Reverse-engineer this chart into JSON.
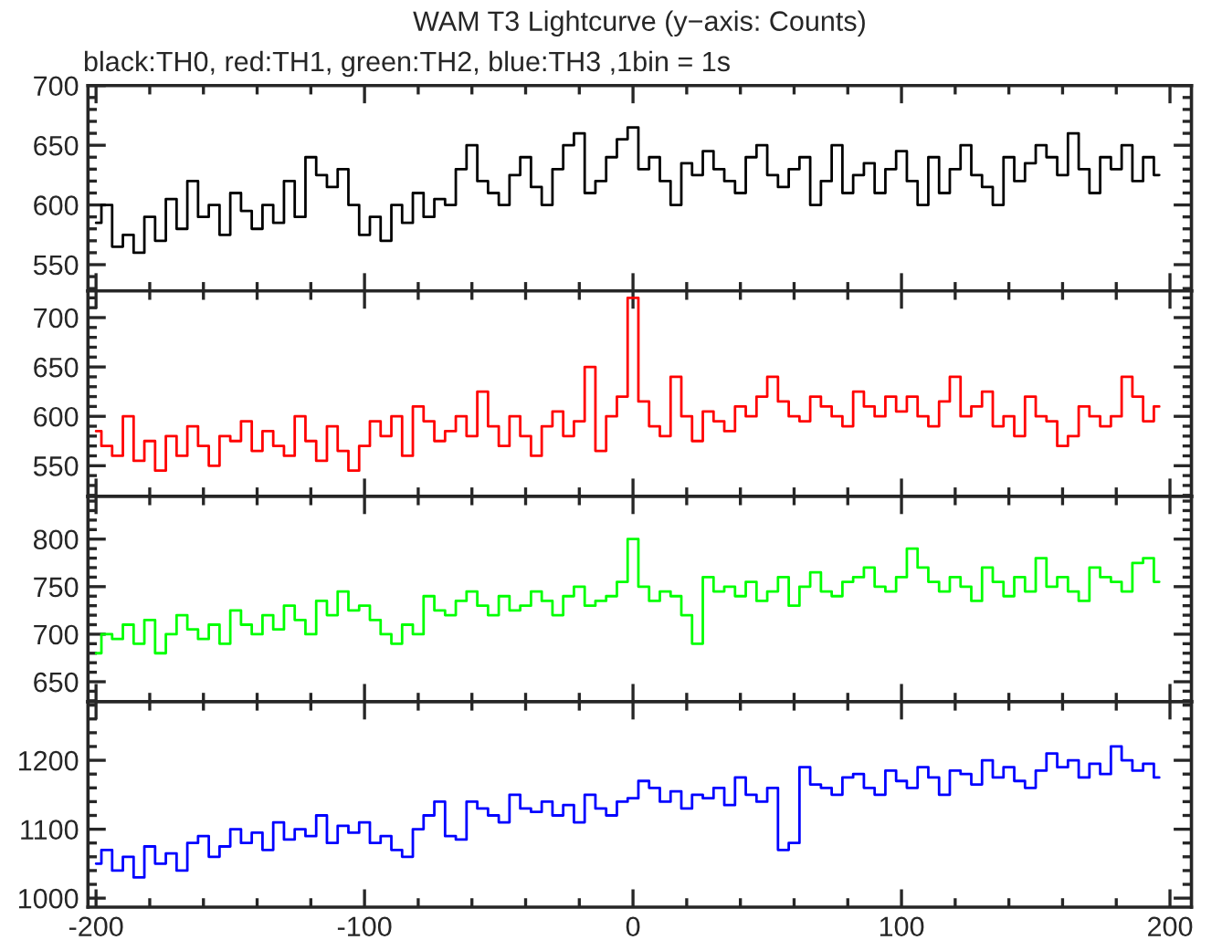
{
  "chart_data": [
    {
      "type": "step",
      "title": "WAM T3 Lightcurve (y−axis: Counts)",
      "subtitle": "black:TH0, red:TH1, green:TH2, blue:TH3 ,1bin = 1s",
      "xlim": [
        -203,
        208
      ],
      "ylim": [
        528,
        700
      ],
      "yticks": [
        550,
        600,
        650,
        700
      ],
      "tick_labels": "y",
      "x": [
        -200,
        -196,
        -192,
        -188,
        -184,
        -180,
        -176,
        -172,
        -168,
        -164,
        -160,
        -156,
        -152,
        -148,
        -144,
        -140,
        -136,
        -132,
        -128,
        -124,
        -120,
        -116,
        -112,
        -108,
        -104,
        -100,
        -96,
        -92,
        -88,
        -84,
        -80,
        -76,
        -72,
        -68,
        -64,
        -60,
        -56,
        -52,
        -48,
        -44,
        -40,
        -36,
        -32,
        -28,
        -24,
        -20,
        -16,
        -12,
        -8,
        -4,
        0,
        4,
        8,
        12,
        16,
        20,
        24,
        28,
        32,
        36,
        40,
        44,
        48,
        52,
        56,
        60,
        64,
        68,
        72,
        76,
        80,
        84,
        88,
        92,
        96,
        100,
        104,
        108,
        112,
        116,
        120,
        124,
        128,
        132,
        136,
        140,
        144,
        148,
        152,
        156,
        160,
        164,
        168,
        172,
        176,
        180,
        184,
        188,
        192,
        196
      ],
      "series": [
        {
          "color": "#000000",
          "values": [
            585,
            600,
            565,
            575,
            560,
            590,
            570,
            605,
            580,
            620,
            590,
            600,
            575,
            610,
            595,
            580,
            600,
            585,
            620,
            590,
            640,
            625,
            615,
            630,
            600,
            575,
            590,
            570,
            600,
            585,
            610,
            590,
            605,
            600,
            630,
            650,
            620,
            610,
            600,
            625,
            640,
            615,
            600,
            630,
            650,
            660,
            610,
            620,
            640,
            655,
            665,
            630,
            640,
            620,
            600,
            635,
            625,
            645,
            630,
            620,
            610,
            640,
            650,
            625,
            615,
            630,
            640,
            600,
            620,
            650,
            610,
            625,
            635,
            610,
            630,
            645,
            620,
            600,
            640,
            610,
            630,
            650,
            625,
            615,
            600,
            640,
            620,
            635,
            650,
            640,
            625,
            660,
            630,
            610,
            640,
            630,
            650,
            620,
            640,
            625
          ]
        }
      ]
    },
    {
      "type": "step",
      "xlim": [
        -203,
        208
      ],
      "ylim": [
        519,
        727
      ],
      "yticks": [
        550,
        600,
        650,
        700
      ],
      "tick_labels": "y",
      "x": [
        -200,
        -196,
        -192,
        -188,
        -184,
        -180,
        -176,
        -172,
        -168,
        -164,
        -160,
        -156,
        -152,
        -148,
        -144,
        -140,
        -136,
        -132,
        -128,
        -124,
        -120,
        -116,
        -112,
        -108,
        -104,
        -100,
        -96,
        -92,
        -88,
        -84,
        -80,
        -76,
        -72,
        -68,
        -64,
        -60,
        -56,
        -52,
        -48,
        -44,
        -40,
        -36,
        -32,
        -28,
        -24,
        -20,
        -16,
        -12,
        -8,
        -4,
        0,
        4,
        8,
        12,
        16,
        20,
        24,
        28,
        32,
        36,
        40,
        44,
        48,
        52,
        56,
        60,
        64,
        68,
        72,
        76,
        80,
        84,
        88,
        92,
        96,
        100,
        104,
        108,
        112,
        116,
        120,
        124,
        128,
        132,
        136,
        140,
        144,
        148,
        152,
        156,
        160,
        164,
        168,
        172,
        176,
        180,
        184,
        188,
        192,
        196
      ],
      "series": [
        {
          "color": "#ff0000",
          "values": [
            585,
            570,
            560,
            600,
            555,
            575,
            545,
            580,
            560,
            590,
            570,
            550,
            580,
            575,
            595,
            565,
            585,
            570,
            560,
            600,
            575,
            555,
            590,
            565,
            545,
            570,
            595,
            580,
            600,
            560,
            610,
            595,
            575,
            585,
            600,
            580,
            625,
            590,
            570,
            600,
            580,
            560,
            590,
            605,
            580,
            595,
            650,
            565,
            600,
            620,
            720,
            615,
            590,
            580,
            640,
            600,
            575,
            605,
            595,
            585,
            610,
            600,
            620,
            640,
            615,
            600,
            595,
            620,
            610,
            600,
            590,
            625,
            610,
            600,
            620,
            605,
            620,
            600,
            590,
            615,
            640,
            600,
            610,
            625,
            590,
            600,
            580,
            620,
            600,
            595,
            570,
            580,
            610,
            600,
            590,
            600,
            640,
            620,
            595,
            610
          ]
        }
      ]
    },
    {
      "type": "step",
      "xlim": [
        -203,
        208
      ],
      "ylim": [
        629,
        845
      ],
      "yticks": [
        650,
        700,
        750,
        800
      ],
      "tick_labels": "y",
      "x": [
        -200,
        -196,
        -192,
        -188,
        -184,
        -180,
        -176,
        -172,
        -168,
        -164,
        -160,
        -156,
        -152,
        -148,
        -144,
        -140,
        -136,
        -132,
        -128,
        -124,
        -120,
        -116,
        -112,
        -108,
        -104,
        -100,
        -96,
        -92,
        -88,
        -84,
        -80,
        -76,
        -72,
        -68,
        -64,
        -60,
        -56,
        -52,
        -48,
        -44,
        -40,
        -36,
        -32,
        -28,
        -24,
        -20,
        -16,
        -12,
        -8,
        -4,
        0,
        4,
        8,
        12,
        16,
        20,
        24,
        28,
        32,
        36,
        40,
        44,
        48,
        52,
        56,
        60,
        64,
        68,
        72,
        76,
        80,
        84,
        88,
        92,
        96,
        100,
        104,
        108,
        112,
        116,
        120,
        124,
        128,
        132,
        136,
        140,
        144,
        148,
        152,
        156,
        160,
        164,
        168,
        172,
        176,
        180,
        184,
        188,
        192,
        196
      ],
      "series": [
        {
          "color": "#00ff00",
          "values": [
            680,
            700,
            695,
            710,
            690,
            715,
            680,
            700,
            720,
            705,
            695,
            710,
            690,
            725,
            710,
            700,
            720,
            705,
            730,
            715,
            700,
            735,
            720,
            745,
            725,
            730,
            715,
            700,
            690,
            710,
            700,
            740,
            725,
            720,
            735,
            745,
            730,
            720,
            740,
            725,
            730,
            745,
            735,
            720,
            740,
            750,
            730,
            735,
            740,
            755,
            800,
            750,
            735,
            745,
            740,
            720,
            690,
            760,
            745,
            750,
            740,
            755,
            735,
            745,
            760,
            730,
            750,
            765,
            745,
            740,
            755,
            760,
            770,
            750,
            745,
            760,
            790,
            770,
            755,
            745,
            760,
            750,
            735,
            770,
            755,
            740,
            760,
            745,
            780,
            750,
            760,
            745,
            735,
            770,
            760,
            755,
            745,
            775,
            780,
            755
          ]
        }
      ]
    },
    {
      "type": "step",
      "xlim": [
        -203,
        208
      ],
      "ylim": [
        987,
        1285
      ],
      "yticks": [
        1000,
        1100,
        1200
      ],
      "xticks": [
        -200,
        -100,
        0,
        100,
        200
      ],
      "x": [
        -200,
        -196,
        -192,
        -188,
        -184,
        -180,
        -176,
        -172,
        -168,
        -164,
        -160,
        -156,
        -152,
        -148,
        -144,
        -140,
        -136,
        -132,
        -128,
        -124,
        -120,
        -116,
        -112,
        -108,
        -104,
        -100,
        -96,
        -92,
        -88,
        -84,
        -80,
        -76,
        -72,
        -68,
        -64,
        -60,
        -56,
        -52,
        -48,
        -44,
        -40,
        -36,
        -32,
        -28,
        -24,
        -20,
        -16,
        -12,
        -8,
        -4,
        0,
        4,
        8,
        12,
        16,
        20,
        24,
        28,
        32,
        36,
        40,
        44,
        48,
        52,
        56,
        60,
        64,
        68,
        72,
        76,
        80,
        84,
        88,
        92,
        96,
        100,
        104,
        108,
        112,
        116,
        120,
        124,
        128,
        132,
        136,
        140,
        144,
        148,
        152,
        156,
        160,
        164,
        168,
        172,
        176,
        180,
        184,
        188,
        192,
        196
      ],
      "series": [
        {
          "color": "#0000ff",
          "values": [
            1050,
            1070,
            1040,
            1060,
            1030,
            1075,
            1050,
            1065,
            1040,
            1080,
            1090,
            1060,
            1075,
            1100,
            1080,
            1095,
            1070,
            1110,
            1085,
            1100,
            1090,
            1120,
            1080,
            1105,
            1095,
            1110,
            1080,
            1090,
            1070,
            1060,
            1100,
            1120,
            1140,
            1090,
            1085,
            1140,
            1130,
            1120,
            1110,
            1150,
            1130,
            1125,
            1140,
            1120,
            1135,
            1110,
            1150,
            1130,
            1120,
            1140,
            1145,
            1170,
            1160,
            1140,
            1155,
            1130,
            1150,
            1145,
            1160,
            1135,
            1175,
            1150,
            1140,
            1160,
            1070,
            1080,
            1190,
            1165,
            1160,
            1150,
            1175,
            1180,
            1160,
            1150,
            1185,
            1170,
            1160,
            1190,
            1175,
            1150,
            1185,
            1180,
            1165,
            1200,
            1175,
            1190,
            1170,
            1160,
            1185,
            1210,
            1190,
            1200,
            1175,
            1195,
            1180,
            1220,
            1200,
            1185,
            1195,
            1175
          ]
        }
      ]
    }
  ]
}
